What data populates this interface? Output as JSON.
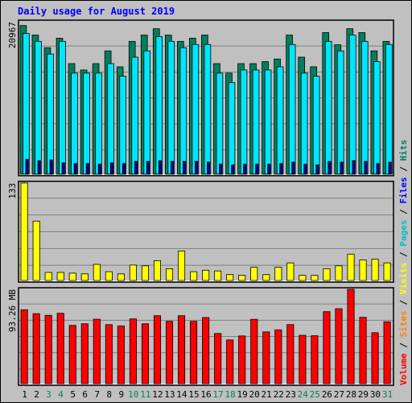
{
  "chart_data": [
    {
      "type": "bar",
      "title": "Daily usage for August 2019",
      "ylabel": "20967",
      "y_max_label": "20967",
      "ylim": [
        0,
        21500
      ],
      "categories": [
        "1",
        "2",
        "3",
        "4",
        "5",
        "6",
        "7",
        "8",
        "9",
        "10",
        "11",
        "12",
        "13",
        "14",
        "15",
        "16",
        "17",
        "18",
        "19",
        "20",
        "21",
        "22",
        "23",
        "24",
        "25",
        "26",
        "27",
        "28",
        "29",
        "30",
        "31"
      ],
      "weekend_days": [
        "3",
        "4",
        "10",
        "11",
        "17",
        "18",
        "24",
        "25",
        "31"
      ],
      "series": [
        {
          "name": "Hits",
          "color": "#00805f",
          "values": [
            20967,
            19627,
            17836,
            19180,
            15590,
            14693,
            15590,
            17388,
            15140,
            18733,
            19627,
            20518,
            19627,
            18733,
            19180,
            19627,
            15590,
            14250,
            15590,
            15590,
            15870,
            16243,
            19627,
            16497,
            15140,
            19965,
            18250,
            20518,
            19965,
            17388,
            18733
          ]
        },
        {
          "name": "Files",
          "color": "#00e6ff",
          "values": [
            19852,
            18733,
            16940,
            18733,
            14250,
            14250,
            14250,
            15590,
            13810,
            16497,
            17388,
            19400,
            18733,
            17836,
            18290,
            18290,
            14250,
            12920,
            14693,
            14693,
            14693,
            15140,
            18290,
            14250,
            13810,
            18733,
            17388,
            19627,
            18733,
            15870,
            18290
          ]
        },
        {
          "name": "Pages",
          "color": "#0000a0",
          "values": [
            2100,
            1900,
            2000,
            1600,
            1500,
            1500,
            1400,
            1600,
            1500,
            1800,
            1800,
            1900,
            1800,
            1800,
            1800,
            1700,
            1400,
            1300,
            1400,
            1400,
            1400,
            1500,
            1700,
            1400,
            1300,
            1800,
            1700,
            1900,
            1800,
            1500,
            1700
          ]
        },
        {
          "name": "Visits",
          "color": "#ffff00",
          "values": [
            133,
            81,
            11,
            11,
            10,
            9,
            22,
            12,
            9,
            21,
            20,
            27,
            16,
            40,
            12,
            14,
            13,
            8,
            7,
            18,
            8,
            18,
            24,
            7,
            7,
            16,
            20,
            36,
            28,
            29,
            24
          ]
        },
        {
          "name": "Sites",
          "color": "#ff8000",
          "values": [
            0,
            0,
            0,
            0,
            0,
            0,
            0,
            0,
            0,
            0,
            0,
            0,
            0,
            0,
            0,
            0,
            0,
            0,
            0,
            0,
            0,
            0,
            0,
            0,
            0,
            0,
            0,
            0,
            0,
            0,
            0
          ]
        },
        {
          "name": "Volume",
          "unit": "MB",
          "color": "#ff0000",
          "values": [
            73.1,
            69.2,
            67.6,
            69.6,
            57.6,
            59.2,
            63.7,
            58.4,
            57.1,
            64.0,
            59.2,
            67.2,
            61.6,
            67.2,
            61.6,
            65.4,
            49.6,
            43.2,
            47.2,
            63.6,
            51.2,
            53.2,
            58.4,
            47.8,
            47.4,
            71.2,
            74.1,
            93.26,
            65.6,
            50.4,
            61.2
          ]
        }
      ],
      "visits_max_label": "133",
      "volume_max_label": "93.26 MB",
      "right_legend": [
        {
          "label": "Volume",
          "color": "#ff0000"
        },
        {
          "label": "Sites",
          "color": "#ff8000"
        },
        {
          "label": "Visits",
          "color": "#ffff00"
        },
        {
          "label": "Pages",
          "color": "#00c0c0"
        },
        {
          "label": "Files",
          "color": "#0000ff"
        },
        {
          "label": "Hits",
          "color": "#00805f"
        }
      ],
      "legend_separator": "/",
      "day_label_color": "#000000",
      "weekend_label_color": "#00805f"
    }
  ]
}
